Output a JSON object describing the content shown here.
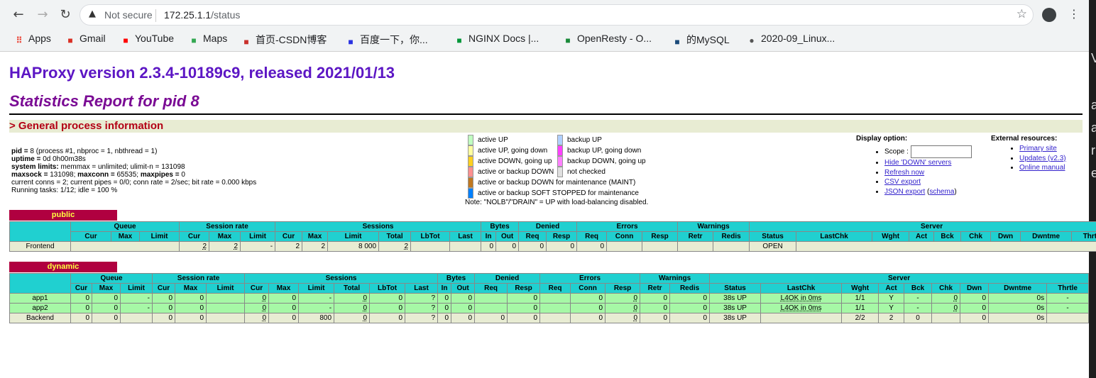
{
  "browser": {
    "security_label": "Not secure",
    "url_host": "172.25.1.1",
    "url_path": "/status",
    "bookmarks": [
      {
        "label": "Apps",
        "icon": "apps-grid-icon",
        "color": "#ea4335"
      },
      {
        "label": "Gmail",
        "icon": "gmail-icon",
        "color": "#d93025"
      },
      {
        "label": "YouTube",
        "icon": "youtube-icon",
        "color": "#ff0000"
      },
      {
        "label": "Maps",
        "icon": "maps-icon",
        "color": "#34a853"
      },
      {
        "label": "首页-CSDN博客",
        "icon": "csdn-icon",
        "color": "#c9302c"
      },
      {
        "label": "百度一下，你...",
        "icon": "baidu-icon",
        "color": "#2932e1"
      },
      {
        "label": "NGINX Docs |...",
        "icon": "nginx-icon",
        "color": "#009639"
      },
      {
        "label": "OpenResty - O...",
        "icon": "openresty-icon",
        "color": "#1a8a3a"
      },
      {
        "label": "的MySQL",
        "icon": "mysql-icon",
        "color": "#1a4a7a"
      },
      {
        "label": "2020-09_Linux...",
        "icon": "globe-icon",
        "color": "#555555"
      }
    ]
  },
  "page": {
    "title": "HAProxy version 2.3.4-10189c9, released 2021/01/13",
    "subtitle": "Statistics Report for pid 8",
    "section": "> General process information",
    "info": {
      "pid_label": "pid =",
      "pid_value": "8 (process #1, nbproc = 1, nbthread = 1)",
      "uptime_label": "uptime =",
      "uptime_value": "0d 0h00m38s",
      "syslimits_label": "system limits:",
      "syslimits_value": "memmax = unlimited; ulimit-n = 131098",
      "maxsock_label": "maxsock =",
      "maxsock_value": "131098;",
      "maxconn_label": "maxconn =",
      "maxconn_value": "65535;",
      "maxpipes_label": "maxpipes =",
      "maxpipes_value": "0",
      "line5": "current conns = 2; current pipes = 0/0; conn rate = 2/sec; bit rate = 0.000 kbps",
      "line6": "Running tasks: 1/12; idle = 100 %"
    },
    "legend": {
      "left": [
        {
          "label": "active UP",
          "color": "#c0ffc0"
        },
        {
          "label": "active UP, going down",
          "color": "#ffffa0"
        },
        {
          "label": "active DOWN, going up",
          "color": "#ffd020"
        },
        {
          "label": "active or backup DOWN",
          "color": "#ff9090"
        },
        {
          "label": "active or backup DOWN for maintenance (MAINT)",
          "color": "#c07820"
        },
        {
          "label": "active or backup SOFT STOPPED for maintenance",
          "color": "#0080ff"
        }
      ],
      "right": [
        {
          "label": "backup UP",
          "color": "#b0d0ff"
        },
        {
          "label": "backup UP, going down",
          "color": "#ff40ff"
        },
        {
          "label": "backup DOWN, going up",
          "color": "#ff80ff"
        },
        {
          "label": "not checked",
          "color": "#e0e0e0"
        }
      ],
      "note": "Note: \"NOLB\"/\"DRAIN\" = UP with load-balancing disabled."
    },
    "display_options": {
      "heading": "Display option:",
      "scope_label": "Scope :",
      "links": [
        "Hide 'DOWN' servers",
        "Refresh now",
        "CSV export"
      ],
      "json_export": "JSON export",
      "schema": "schema"
    },
    "external": {
      "heading": "External resources:",
      "links": [
        "Primary site",
        "Updates (v2.3)",
        "Online manual"
      ]
    }
  },
  "public": {
    "name": "public",
    "groups": [
      "Queue",
      "Session rate",
      "Sessions",
      "Bytes",
      "Denied",
      "Errors",
      "Warnings",
      "Server"
    ],
    "cols": [
      "Cur",
      "Max",
      "Limit",
      "Cur",
      "Max",
      "Limit",
      "Cur",
      "Max",
      "Limit",
      "Total",
      "LbTot",
      "Last",
      "In",
      "Out",
      "Req",
      "Resp",
      "Req",
      "Conn",
      "Resp",
      "Retr",
      "Redis",
      "Status",
      "LastChk",
      "Wght",
      "Act",
      "Bck",
      "Chk",
      "Dwn",
      "Dwntme",
      "Thrtle"
    ],
    "frontend": {
      "name": "Frontend",
      "rate_cur": "2",
      "rate_max": "2",
      "rate_lim": "-",
      "s_cur": "2",
      "s_max": "2",
      "s_lim": "8 000",
      "s_tot": "2",
      "b_in": "0",
      "b_out": "0",
      "d_req": "0",
      "d_resp": "0",
      "e_req": "0",
      "status": "OPEN"
    }
  },
  "dynamic": {
    "name": "dynamic",
    "rows": [
      {
        "name": "app1",
        "vals": [
          "0",
          "0",
          "-",
          "0",
          "0",
          "",
          "0",
          "0",
          "-",
          "0",
          "0",
          "?",
          "0",
          "0",
          "",
          "0",
          "",
          "0",
          "0",
          "0",
          "0",
          "38s UP",
          "L4OK in 0ms",
          "1/1",
          "Y",
          "-",
          "0",
          "0",
          "0s",
          "-"
        ]
      },
      {
        "name": "app2",
        "vals": [
          "0",
          "0",
          "-",
          "0",
          "0",
          "",
          "0",
          "0",
          "-",
          "0",
          "0",
          "?",
          "0",
          "0",
          "",
          "0",
          "",
          "0",
          "0",
          "0",
          "0",
          "38s UP",
          "L4OK in 0ms",
          "1/1",
          "Y",
          "-",
          "0",
          "0",
          "0s",
          "-"
        ]
      },
      {
        "name": "Backend",
        "vals": [
          "0",
          "0",
          "",
          "0",
          "0",
          "",
          "0",
          "0",
          "800",
          "0",
          "0",
          "?",
          "0",
          "0",
          "0",
          "0",
          "",
          "0",
          "0",
          "0",
          "0",
          "38s UP",
          "",
          "2/2",
          "2",
          "0",
          "",
          "0",
          "0s",
          ""
        ]
      }
    ]
  }
}
